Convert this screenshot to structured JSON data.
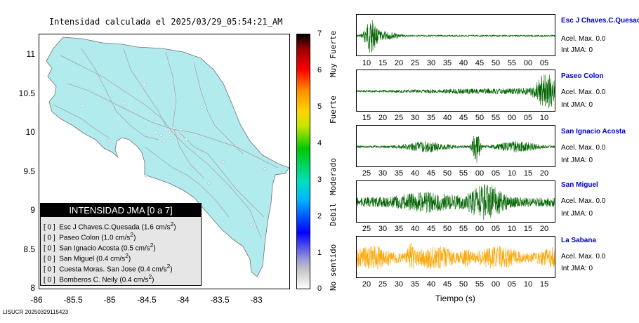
{
  "map": {
    "title": "Intensidad calculada el 2025/03/29_05:54:21_AM",
    "y_ticks": [
      "11",
      "10.5",
      "10",
      "9.5",
      "9",
      "8.5",
      "8"
    ],
    "x_ticks": [
      "-86",
      "-85.5",
      "-85",
      "-84.5",
      "-84",
      "-83.5",
      "-83"
    ],
    "colors": {
      "land": "#b2ebee",
      "sea": "#ffffff",
      "roads": "#a0a0a0",
      "stations": "#ffffff"
    }
  },
  "legend": {
    "title": "INTENSIDAD JMA [0 a 7]",
    "items": [
      {
        "level": "[ 0 ]",
        "text": "Esc J Chaves.C.Quesada (1.6 cm/s",
        "sup": "2",
        "close": ")"
      },
      {
        "level": "[ 0 ]",
        "text": "Paseo Colon (1.0 cm/s",
        "sup": "2",
        "close": ")"
      },
      {
        "level": "[ 0 ]",
        "text": "San Ignacio Acosta (0.5 cm/s",
        "sup": "2",
        "close": ")"
      },
      {
        "level": "[ 0 ]",
        "text": "San Miguel (0.4 cm/s",
        "sup": "2",
        "close": ")"
      },
      {
        "level": "[ 0 ]",
        "text": "Cuesta Moras. San Jose (0.4 cm/s",
        "sup": "2",
        "close": ")"
      },
      {
        "level": "[ 0 ]",
        "text": "Bomberos C. Neily (0.4 cm/s",
        "sup": "2",
        "close": ")"
      }
    ]
  },
  "colorbar": {
    "ticks": [
      "7",
      "6",
      "5",
      "4",
      "3",
      "2",
      "1",
      "0"
    ],
    "categories": [
      "Muy Fuerte",
      "Fuerte",
      "Moderado",
      "Debil",
      "No sentido"
    ]
  },
  "stations": [
    {
      "name": "Esc J Chaves.C.Quesad",
      "acel": "Acel. Max. 0.0",
      "int": "Int JMA: 0",
      "color": "#006400",
      "ticks": [
        "10",
        "15",
        "20",
        "25",
        "30",
        "35",
        "40",
        "45",
        "50",
        "55",
        "00",
        "05"
      ]
    },
    {
      "name": "Paseo Colon",
      "acel": "Acel. Max. 0.0",
      "int": "Int JMA: 0",
      "color": "#006400",
      "ticks": [
        "15",
        "20",
        "25",
        "30",
        "35",
        "40",
        "45",
        "50",
        "55",
        "00",
        "05",
        "10"
      ]
    },
    {
      "name": "San Ignacio Acosta",
      "acel": "Acel. Max. 0.0",
      "int": "Int JMA: 0",
      "color": "#006400",
      "ticks": [
        "25",
        "30",
        "35",
        "40",
        "45",
        "50",
        "55",
        "00",
        "05",
        "10",
        "15",
        "20"
      ]
    },
    {
      "name": "San Miguel",
      "acel": "Acel. Max. 0.0",
      "int": "Int JMA: 0",
      "color": "#006400",
      "ticks": [
        "25",
        "30",
        "35",
        "40",
        "45",
        "50",
        "55",
        "00",
        "05",
        "10",
        "15",
        "20"
      ]
    },
    {
      "name": "La Sabana",
      "acel": "Acel. Max. 0.0",
      "int": "Int JMA: 0",
      "color": "#ffa500",
      "ticks": [
        "20",
        "25",
        "30",
        "35",
        "40",
        "45",
        "50",
        "55",
        "00",
        "05",
        "10",
        "15"
      ]
    }
  ],
  "xaxis_label": "Tiempo (s)",
  "footer": "LISUCR 20250329115423"
}
